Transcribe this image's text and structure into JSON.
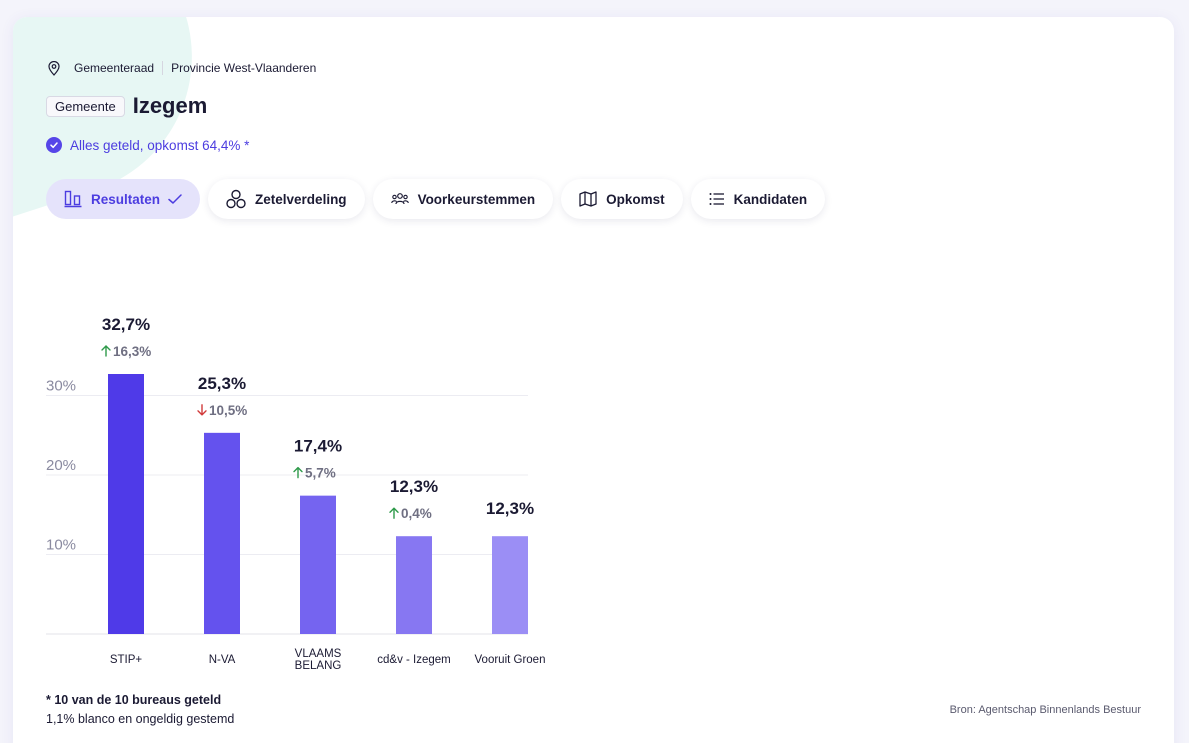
{
  "breadcrumb": {
    "level": "Gemeenteraad",
    "region": "Provincie West-Vlaanderen"
  },
  "header": {
    "badge": "Gemeente",
    "title": "Izegem"
  },
  "status": {
    "text": "Alles geteld, opkomst 64,4% *"
  },
  "tabs": [
    {
      "label": "Resultaten",
      "icon": "bar-chart-icon",
      "active": true
    },
    {
      "label": "Zetelverdeling",
      "icon": "circles-icon",
      "active": false
    },
    {
      "label": "Voorkeurstemmen",
      "icon": "people-icon",
      "active": false
    },
    {
      "label": "Opkomst",
      "icon": "map-icon",
      "active": false
    },
    {
      "label": "Kandidaten",
      "icon": "list-icon",
      "active": false
    }
  ],
  "colors": {
    "accent": "#4c3de0",
    "active_tab_bg": "#e5e3fb",
    "up": "#2e9a4a",
    "down": "#d13b3b"
  },
  "chart_data": {
    "type": "bar",
    "categories": [
      "STIP+",
      "N-VA",
      "VLAAMS BELANG",
      "cd&v - Izegem",
      "Vooruit Groen"
    ],
    "values": [
      32.7,
      25.3,
      17.4,
      12.3,
      12.3
    ],
    "value_labels": [
      "32,7%",
      "25,3%",
      "17,4%",
      "12,3%",
      "12,3%"
    ],
    "changes": [
      {
        "direction": "up",
        "label": "16,3%"
      },
      {
        "direction": "down",
        "label": "10,5%"
      },
      {
        "direction": "up",
        "label": "5,7%"
      },
      {
        "direction": "up",
        "label": "0,4%"
      },
      null
    ],
    "bar_colors": [
      "#4f3ae8",
      "#6452ee",
      "#7564f0",
      "#8777f2",
      "#9b8ef5"
    ],
    "yticks": [
      {
        "value": 10,
        "label": "10%"
      },
      {
        "value": 20,
        "label": "20%"
      },
      {
        "value": 30,
        "label": "30%"
      }
    ],
    "ylim": [
      0,
      32.7
    ],
    "grid": true,
    "title": "",
    "xlabel": "",
    "ylabel": ""
  },
  "footnote": {
    "counted": "* 10 van de 10 bureaus geteld",
    "blank": "1,1% blanco en ongeldig gestemd"
  },
  "source": "Bron: Agentschap Binnenlands Bestuur"
}
